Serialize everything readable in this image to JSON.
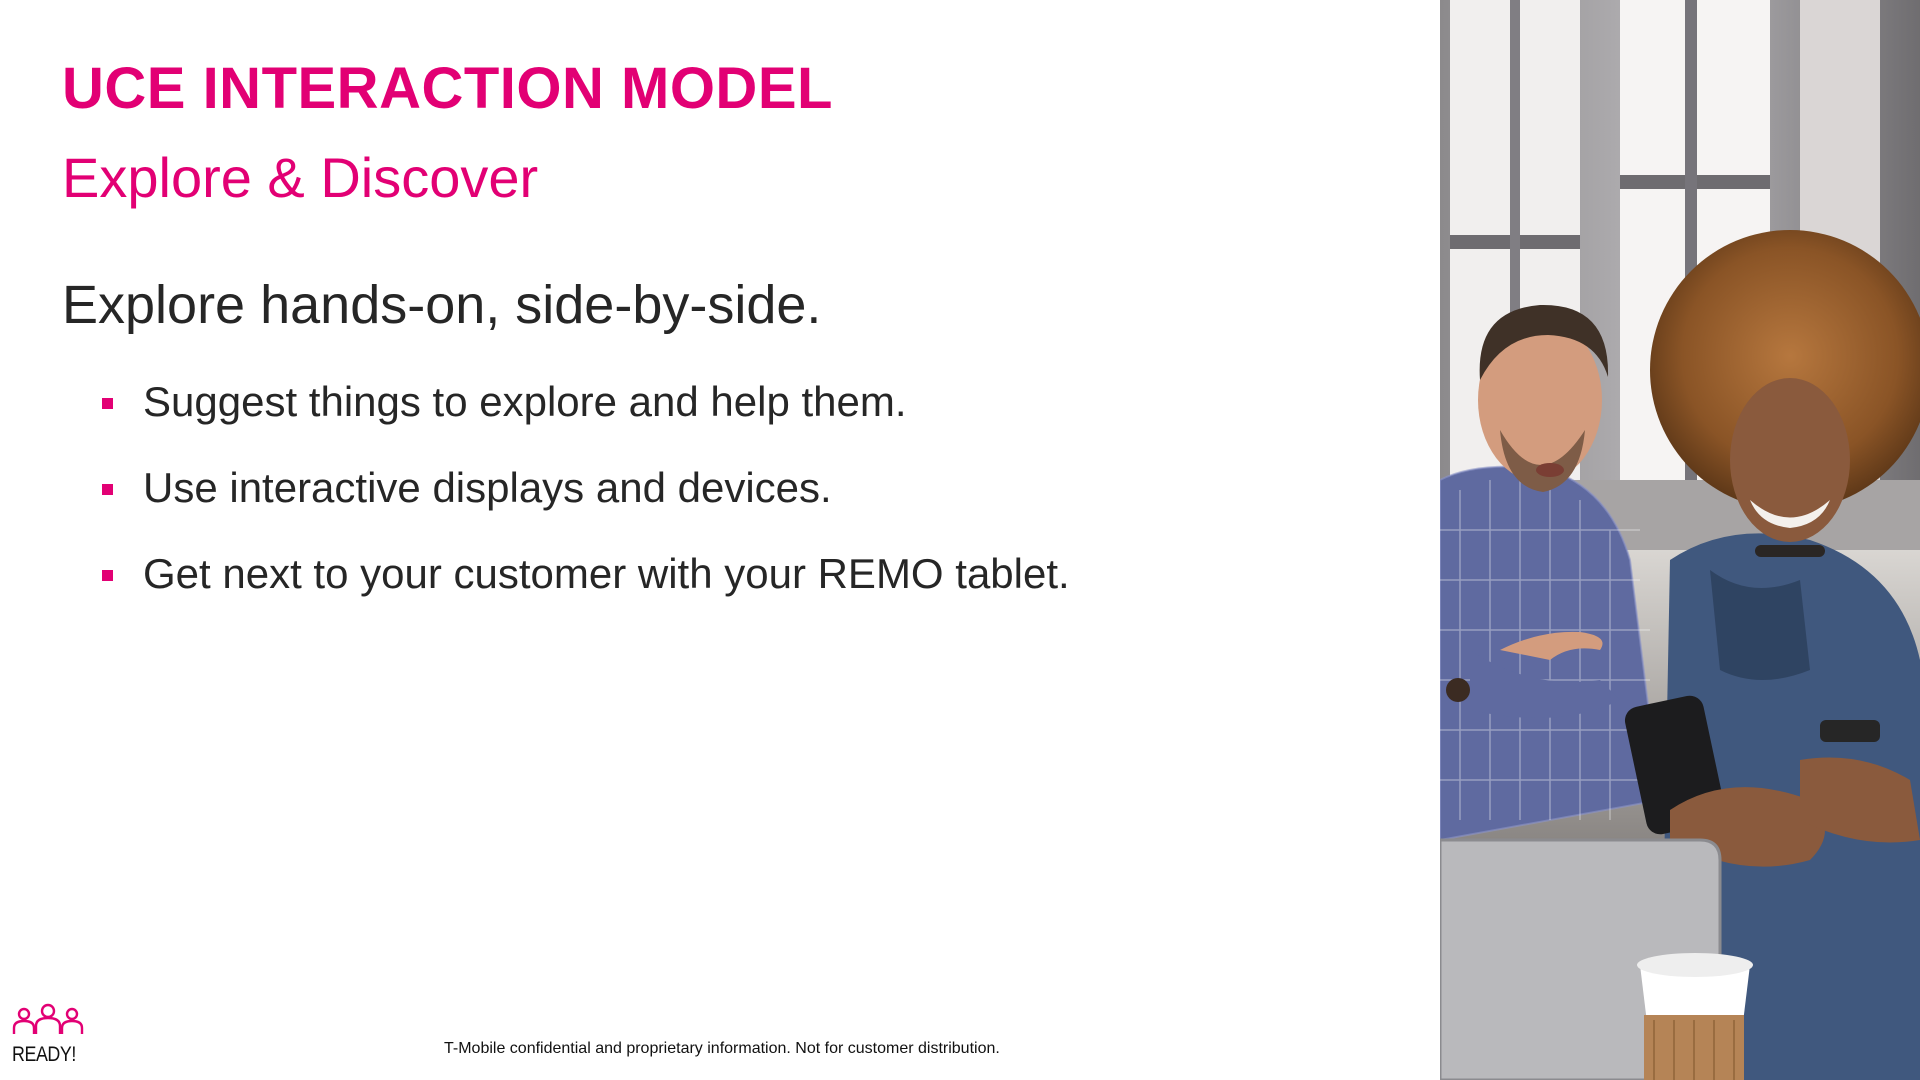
{
  "slide": {
    "title": "UCE INTERACTION MODEL",
    "subtitle": "Explore & Discover",
    "lead": "Explore hands-on, side-by-side.",
    "bullets": [
      "Suggest things to explore and help them.",
      "Use interactive displays and devices.",
      "Get next to your customer with your REMO tablet."
    ],
    "footer": "T-Mobile confidential and proprietary information. Not for customer distribution."
  },
  "logo": {
    "text": "READY!",
    "icon": "people-group-icon"
  },
  "photo": {
    "icon": "photo-two-people-phone"
  },
  "colors": {
    "accent": "#e20074",
    "text": "#262626"
  }
}
